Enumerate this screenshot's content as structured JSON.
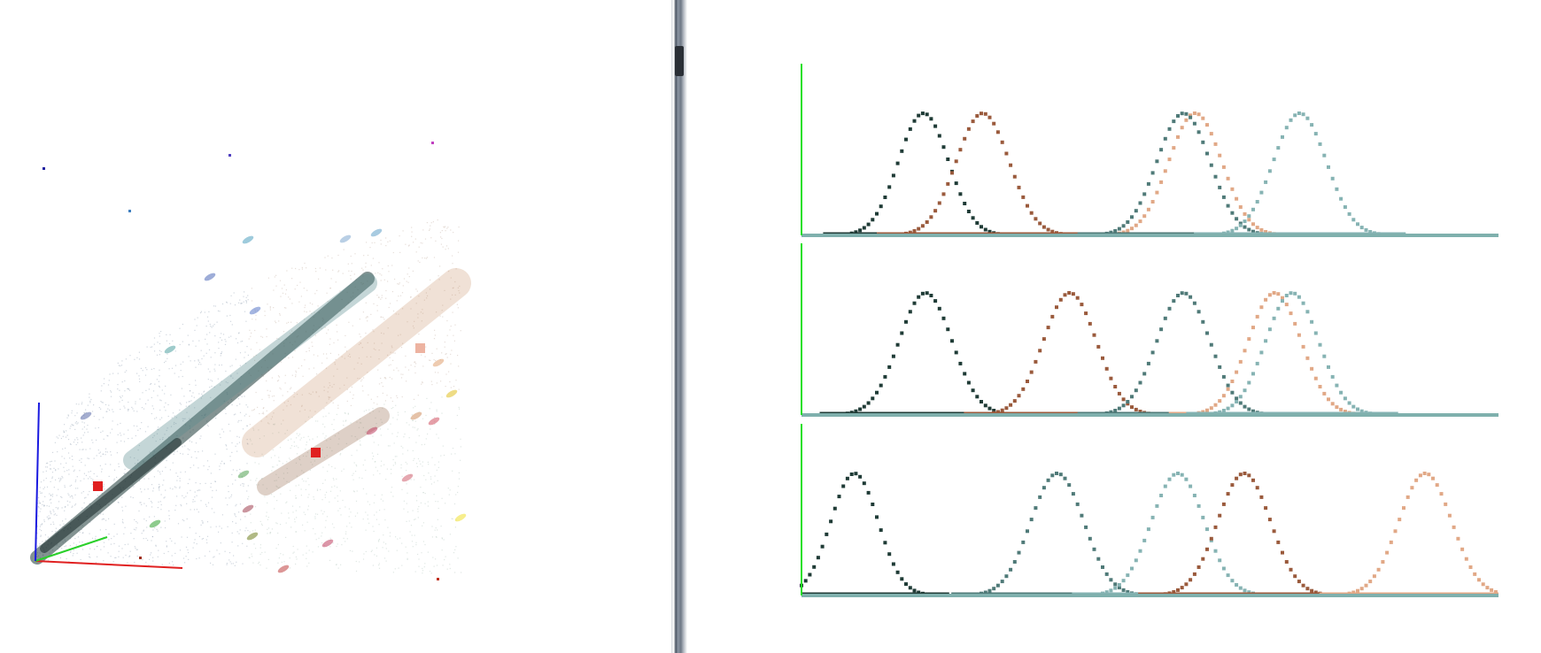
{
  "views": {
    "scatter": {
      "name": "3d-color-scatter",
      "axes_colors": {
        "x": "#e02020",
        "y": "#2ad02a",
        "z": "#1a1ae0"
      }
    },
    "curves": {
      "name": "gaussian-curve-plots",
      "axis_color": "#22e022",
      "baseline_color": "#7fb0ad"
    }
  },
  "chart_data": [
    {
      "type": "line",
      "title": "",
      "xlabel": "",
      "ylabel": "",
      "xlim": [
        0,
        100
      ],
      "ylim": [
        0,
        1
      ],
      "series": [
        {
          "color": "#1f3b36",
          "mean": 17.5,
          "sd": 3.6
        },
        {
          "color": "#9a5a3c",
          "mean": 26,
          "sd": 3.8
        },
        {
          "color": "#e1a886",
          "mean": 56.5,
          "sd": 3.8
        },
        {
          "color": "#4f7a78",
          "mean": 54.8,
          "sd": 3.8
        },
        {
          "color": "#86b3b3",
          "mean": 71.5,
          "sd": 3.8
        }
      ]
    },
    {
      "type": "line",
      "title": "",
      "xlabel": "",
      "ylabel": "",
      "xlim": [
        0,
        100
      ],
      "ylim": [
        0,
        1
      ],
      "series": [
        {
          "color": "#1f3b36",
          "mean": 17.8,
          "sd": 3.8
        },
        {
          "color": "#9a5a3c",
          "mean": 38.5,
          "sd": 3.8
        },
        {
          "color": "#4f7a78",
          "mean": 54.8,
          "sd": 3.8
        },
        {
          "color": "#e1a886",
          "mean": 67.9,
          "sd": 3.8
        },
        {
          "color": "#86b3b3",
          "mean": 70.4,
          "sd": 3.8
        }
      ]
    },
    {
      "type": "line",
      "title": "",
      "xlabel": "",
      "ylabel": "",
      "xlim": [
        0,
        100
      ],
      "ylim": [
        0,
        1
      ],
      "series": [
        {
          "color": "#1f3b36",
          "mean": 7.6,
          "sd": 3.4
        },
        {
          "color": "#4f7a78",
          "mean": 36.7,
          "sd": 3.8
        },
        {
          "color": "#86b3b3",
          "mean": 54,
          "sd": 3.8
        },
        {
          "color": "#9a5a3c",
          "mean": 63.5,
          "sd": 3.8
        },
        {
          "color": "#e1a886",
          "mean": 89.5,
          "sd": 3.8
        }
      ]
    }
  ]
}
